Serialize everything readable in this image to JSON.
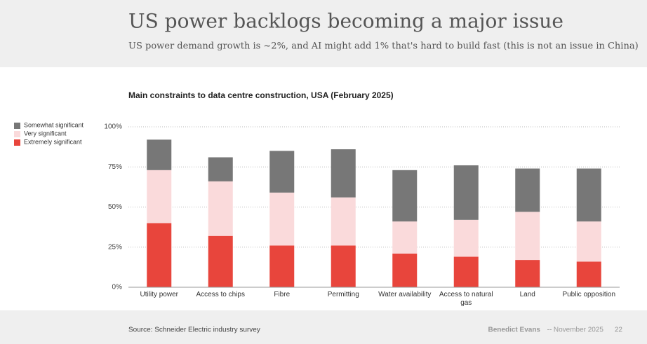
{
  "header": {
    "title": "US power backlogs becoming a major issue",
    "subtitle": "US power demand growth is ~2%, and AI might add 1% that's hard to build fast (this is not an issue in China)"
  },
  "chart_data": {
    "type": "stacked-bar",
    "title": "Main constraints to data centre construction, USA (February 2025)",
    "categories": [
      "Utility power",
      "Access to chips",
      "Fibre",
      "Permitting",
      "Water availability",
      "Access to natural gas",
      "Land",
      "Public opposition"
    ],
    "series": [
      {
        "name": "Extremely significant",
        "color": "#e8453c",
        "values": [
          40,
          32,
          26,
          26,
          21,
          19,
          17,
          16
        ]
      },
      {
        "name": "Very significant",
        "color": "#fadadb",
        "values": [
          33,
          34,
          33,
          30,
          20,
          23,
          30,
          25
        ]
      },
      {
        "name": "Somewhat significant",
        "color": "#777777",
        "values": [
          19,
          15,
          26,
          30,
          32,
          34,
          27,
          33
        ]
      }
    ],
    "ylim": [
      0,
      100
    ],
    "yticks": [
      {
        "value": 0,
        "label": "0%"
      },
      {
        "value": 25,
        "label": "25%"
      },
      {
        "value": 50,
        "label": "50%"
      },
      {
        "value": 75,
        "label": "75%"
      },
      {
        "value": 100,
        "label": "100%"
      }
    ],
    "grid": true,
    "legend": "left"
  },
  "footer": {
    "source": "Source: Schneider Electric industry survey",
    "author": "Benedict Evans",
    "separator": "--",
    "date": "November 2025",
    "page": "22"
  }
}
